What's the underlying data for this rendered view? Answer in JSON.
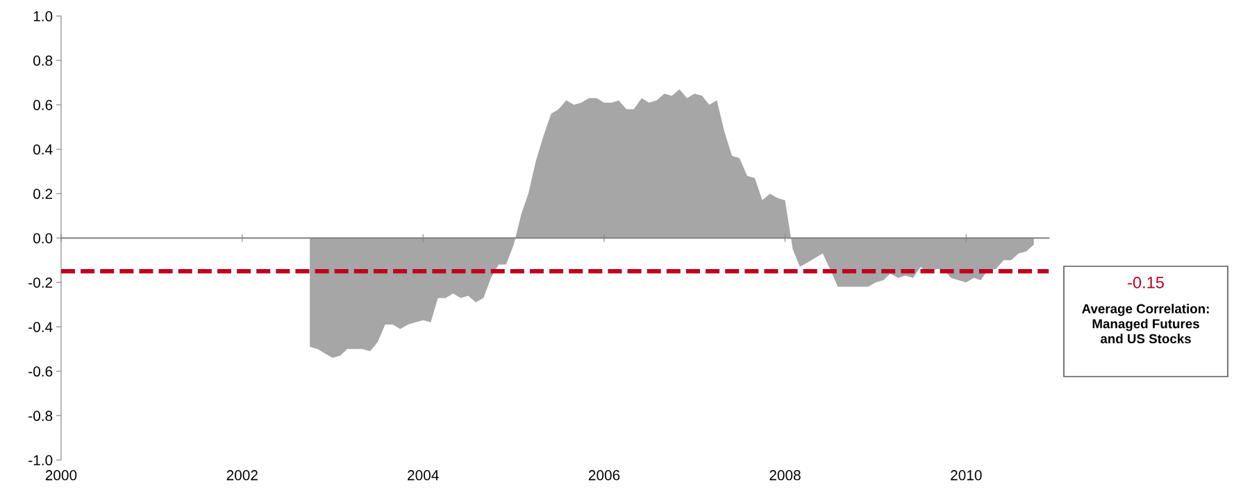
{
  "chart_data": {
    "type": "area",
    "x": [
      "2002-10",
      "2002-11",
      "2002-12",
      "2003-01",
      "2003-02",
      "2003-03",
      "2003-04",
      "2003-05",
      "2003-06",
      "2003-07",
      "2003-08",
      "2003-09",
      "2003-10",
      "2003-11",
      "2003-12",
      "2004-01",
      "2004-02",
      "2004-03",
      "2004-04",
      "2004-05",
      "2004-06",
      "2004-07",
      "2004-08",
      "2004-09",
      "2004-10",
      "2004-11",
      "2004-12",
      "2005-01",
      "2005-02",
      "2005-03",
      "2005-04",
      "2005-05",
      "2005-06",
      "2005-07",
      "2005-08",
      "2005-09",
      "2005-10",
      "2005-11",
      "2005-12",
      "2006-01",
      "2006-02",
      "2006-03",
      "2006-04",
      "2006-05",
      "2006-06",
      "2006-07",
      "2006-08",
      "2006-09",
      "2006-10",
      "2006-11",
      "2006-12",
      "2007-01",
      "2007-02",
      "2007-03",
      "2007-04",
      "2007-05",
      "2007-06",
      "2007-07",
      "2007-08",
      "2007-09",
      "2007-10",
      "2007-11",
      "2007-12",
      "2008-01",
      "2008-02",
      "2008-03",
      "2008-04",
      "2008-05",
      "2008-06",
      "2008-07",
      "2008-08",
      "2008-09",
      "2008-10",
      "2008-11",
      "2008-12",
      "2009-01",
      "2009-02",
      "2009-03",
      "2009-04",
      "2009-05",
      "2009-06",
      "2009-07",
      "2009-08",
      "2009-09",
      "2009-10",
      "2009-11",
      "2009-12",
      "2010-01",
      "2010-02",
      "2010-03",
      "2010-04",
      "2010-05",
      "2010-06",
      "2010-07",
      "2010-08",
      "2010-09",
      "2010-10"
    ],
    "series": [
      {
        "color": "#a6a6a6",
        "values": [
          -0.49,
          -0.5,
          -0.52,
          -0.54,
          -0.53,
          -0.5,
          -0.5,
          -0.5,
          -0.51,
          -0.47,
          -0.39,
          -0.39,
          -0.41,
          -0.39,
          -0.38,
          -0.37,
          -0.38,
          -0.27,
          -0.27,
          -0.25,
          -0.27,
          -0.26,
          -0.29,
          -0.27,
          -0.18,
          -0.12,
          -0.12,
          -0.03,
          0.11,
          0.2,
          0.35,
          0.46,
          0.56,
          0.58,
          0.62,
          0.6,
          0.61,
          0.63,
          0.63,
          0.61,
          0.61,
          0.62,
          0.58,
          0.58,
          0.63,
          0.61,
          0.62,
          0.65,
          0.64,
          0.67,
          0.63,
          0.65,
          0.64,
          0.6,
          0.62,
          0.48,
          0.37,
          0.36,
          0.28,
          0.27,
          0.17,
          0.2,
          0.18,
          0.17,
          -0.05,
          -0.13,
          -0.11,
          -0.09,
          -0.07,
          -0.14,
          -0.22,
          -0.22,
          -0.22,
          -0.22,
          -0.22,
          -0.2,
          -0.19,
          -0.16,
          -0.18,
          -0.17,
          -0.18,
          -0.13,
          -0.16,
          -0.14,
          -0.14,
          -0.18,
          -0.19,
          -0.2,
          -0.18,
          -0.19,
          -0.14,
          -0.14,
          -0.1,
          -0.1,
          -0.07,
          -0.06,
          -0.03
        ]
      }
    ],
    "xlim": [
      "2000-01-01",
      "2010-12-01"
    ],
    "xticks": [
      "2000",
      "2002",
      "2004",
      "2006",
      "2008",
      "2010"
    ],
    "ylim": [
      -1,
      1
    ],
    "yticks": [
      {
        "value": -1,
        "label": "-1.0"
      },
      {
        "value": -0.8,
        "label": "-0.8"
      },
      {
        "value": -0.6,
        "label": "-0.6"
      },
      {
        "value": -0.4,
        "label": "-0.4"
      },
      {
        "value": -0.2,
        "label": "-0.2"
      },
      {
        "value": 0,
        "label": "0.0"
      },
      {
        "value": 0.2,
        "label": "0.2"
      },
      {
        "value": 0.4,
        "label": "0.4"
      },
      {
        "value": 0.6,
        "label": "0.6"
      },
      {
        "value": 0.8,
        "label": "0.8"
      },
      {
        "value": 1,
        "label": "1.0"
      }
    ],
    "ref_lines": [
      {
        "axis": "y",
        "value": -0.15,
        "label": "-0.15",
        "color": "#c00020",
        "line_style": "dashed"
      }
    ],
    "annotations": [
      "Average Correlation:\nManaged Futures\nand US Stocks"
    ]
  }
}
